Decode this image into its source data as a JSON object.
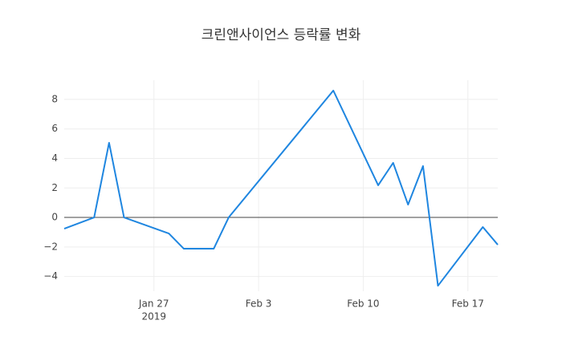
{
  "chart_data": {
    "type": "line",
    "title": "크린앤사이언스 등락률 변화",
    "x": [
      "2019-01-21",
      "2019-01-23",
      "2019-01-24",
      "2019-01-25",
      "2019-01-28",
      "2019-01-29",
      "2019-01-31",
      "2019-02-01",
      "2019-02-08",
      "2019-02-11",
      "2019-02-12",
      "2019-02-13",
      "2019-02-14",
      "2019-02-15",
      "2019-02-18",
      "2019-02-19"
    ],
    "series": [
      {
        "color": "#1f86e0",
        "values": [
          -0.76,
          0,
          5.06,
          0,
          -1.09,
          -2.12,
          -2.12,
          0,
          8.6,
          2.18,
          3.7,
          0.87,
          3.48,
          -4.63,
          -0.65,
          -1.85
        ]
      }
    ],
    "xlim": [
      "2019-01-21",
      "2019-02-19"
    ],
    "xticks": [
      {
        "value": "2019-01-27",
        "label": "Jan 27"
      },
      {
        "value": "2019-02-03",
        "label": "Feb 3"
      },
      {
        "value": "2019-02-10",
        "label": "Feb 10"
      },
      {
        "value": "2019-02-17",
        "label": "Feb 17"
      }
    ],
    "x_year_label": "2019",
    "ylim": [
      -5,
      9.3
    ],
    "yticks": [
      {
        "value": -4,
        "label": "−4"
      },
      {
        "value": -2,
        "label": "−2"
      },
      0,
      2,
      4,
      6,
      8
    ],
    "grid": true
  }
}
